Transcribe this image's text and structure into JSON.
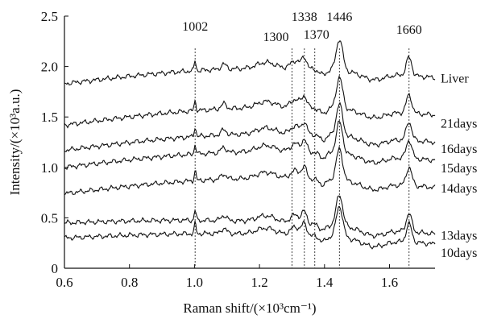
{
  "chart_data": {
    "type": "line",
    "xlabel": "Raman shift/(×10³cm⁻¹)",
    "ylabel": "Intensity/(×10³a.u.)",
    "xlim": [
      0.6,
      1.74
    ],
    "ylim": [
      0,
      2.5
    ],
    "x_ticks": [
      "0.6",
      "0.8",
      "1.0",
      "1.2",
      "1.4",
      "1.6"
    ],
    "y_ticks": [
      "0",
      "0.5",
      "1.0",
      "1.5",
      "2.0",
      "2.5"
    ],
    "grid": false,
    "legend": "labels at right end of each trace",
    "peaks": [
      {
        "label": "1002",
        "x": 1.002
      },
      {
        "label": "1300",
        "x": 1.3
      },
      {
        "label": "1338",
        "x": 1.338
      },
      {
        "label": "1370",
        "x": 1.37
      },
      {
        "label": "1446",
        "x": 1.446
      },
      {
        "label": "1660",
        "x": 1.66
      }
    ],
    "series": [
      {
        "name": "Liver",
        "start": 1.83,
        "end": 1.89
      },
      {
        "name": "21days",
        "start": 1.42,
        "end": 1.52
      },
      {
        "name": "16days",
        "start": 1.17,
        "end": 1.25
      },
      {
        "name": "15days",
        "start": 1.0,
        "end": 1.07
      },
      {
        "name": "14days",
        "start": 0.74,
        "end": 0.8
      },
      {
        "name": "13days",
        "start": 0.45,
        "end": 0.34
      },
      {
        "name": "10days",
        "start": 0.3,
        "end": 0.24
      }
    ]
  }
}
